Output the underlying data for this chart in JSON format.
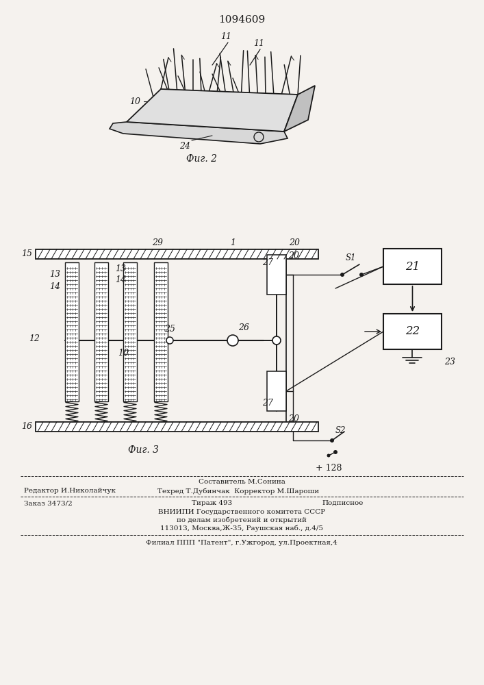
{
  "title": "1094609",
  "fig2_label": "Фиг. 2",
  "fig3_label": "Фиг. 3",
  "bg_color": "#f5f2ee",
  "line_color": "#1a1a1a",
  "footer_line1_center": "Составитель М.Сонина",
  "footer_line1_left": "Редактор И.Николайчук",
  "footer_line1_right": "Техред Т.Дубинчак  Корректор М.Шароши",
  "footer_line2_left": "Заказ 3473/2",
  "footer_line2_center": "Тираж 493",
  "footer_line2_right": "Подписное",
  "footer_line3": "ВНИИПИ Государственного комитета СССР",
  "footer_line4": "по делам изобретений и открытий",
  "footer_line5": "113013, Москва,Ж-35, Раушская наб., д.4/5",
  "footer_line6": "Филиал ППП \"Патент\", г.Ужгород, ул.Проектная,4"
}
